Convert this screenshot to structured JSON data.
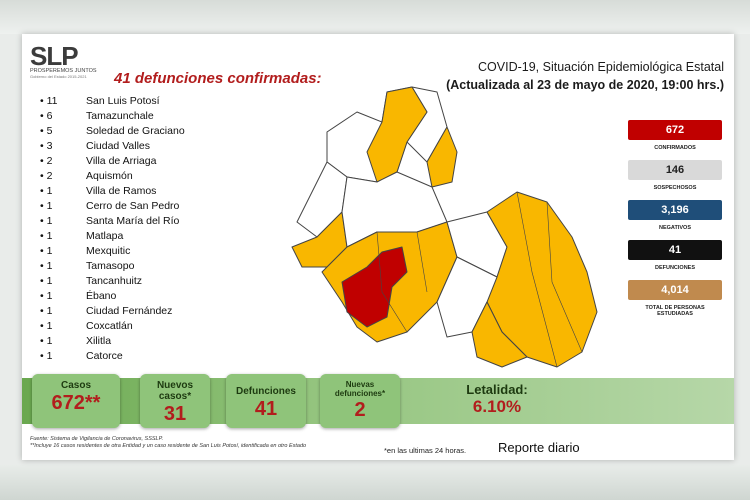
{
  "header": {
    "title": "COVID-19, Situación Epidemiológica Estatal",
    "subtitle": "(Actualizada al 23 de mayo de 2020, 19:00 hrs.)"
  },
  "logo": {
    "text": "SLP",
    "tagline": "PROSPEREMOS JUNTOS",
    "tagline2": "Gobierno del Estado 2015-2021"
  },
  "deaths_title": "41 defunciones confirmadas:",
  "municipalities": [
    {
      "count": "11",
      "name": "San Luis Potosí"
    },
    {
      "count": "6",
      "name": "Tamazunchale"
    },
    {
      "count": "5",
      "name": "Soledad de Graciano"
    },
    {
      "count": "3",
      "name": "Ciudad Valles"
    },
    {
      "count": "2",
      "name": "Villa de Arriaga"
    },
    {
      "count": "2",
      "name": "Aquismón"
    },
    {
      "count": "1",
      "name": "Villa de Ramos"
    },
    {
      "count": "1",
      "name": "Cerro de San Pedro"
    },
    {
      "count": "1",
      "name": "Santa María del Río"
    },
    {
      "count": "1",
      "name": "Matlapa"
    },
    {
      "count": "1",
      "name": "Mexquitic"
    },
    {
      "count": "1",
      "name": "Tamasopo"
    },
    {
      "count": "1",
      "name": "Tancanhuitz"
    },
    {
      "count": "1",
      "name": "Ébano"
    },
    {
      "count": "1",
      "name": "Ciudad Fernández"
    },
    {
      "count": "1",
      "name": "Coxcatlán"
    },
    {
      "count": "1",
      "name": "Xilitla"
    },
    {
      "count": "1",
      "name": "Catorce"
    }
  ],
  "stats": [
    {
      "value": "672",
      "label": "CONFIRMADOS",
      "color": "#c00000",
      "text_color": "#ffffff"
    },
    {
      "value": "146",
      "label": "SOSPECHOSOS",
      "color": "#d9d9d9",
      "text_color": "#222222"
    },
    {
      "value": "3,196",
      "label": "NEGATIVOS",
      "color": "#1f4e79",
      "text_color": "#ffffff"
    },
    {
      "value": "41",
      "label": "DEFUNCIONES",
      "color": "#111111",
      "text_color": "#ffffff"
    },
    {
      "value": "4,014",
      "label": "TOTAL DE PERSONAS ESTUDIADAS",
      "color": "#c08a4e",
      "text_color": "#ffffff"
    }
  ],
  "summary": {
    "casos": {
      "label": "Casos",
      "value": "672**"
    },
    "nuevos_casos": {
      "label": "Nuevos casos*",
      "value": "31"
    },
    "defunciones": {
      "label": "Defunciones",
      "value": "41"
    },
    "nuevas_defunciones": {
      "label": "Nuevas defunciones*",
      "value": "2"
    },
    "letalidad": {
      "label": "Letalidad:",
      "value": "6.10%"
    }
  },
  "footer": {
    "fuente": "Fuente: Sistema de Vigilancia de Coronavirus, SSSLP.",
    "nota": "**Incluye 16 casos residentes de otra Entidad y un caso residente de San Luis Potosí, identificada en otro Estado",
    "ultimas": "*en las ultimas 24 horas.",
    "reporte": "Reporte diario"
  },
  "map_colors": {
    "affected": "#f9b700",
    "deaths_focus": "#c00000",
    "unaffected": "#ffffff",
    "border": "#444444"
  }
}
